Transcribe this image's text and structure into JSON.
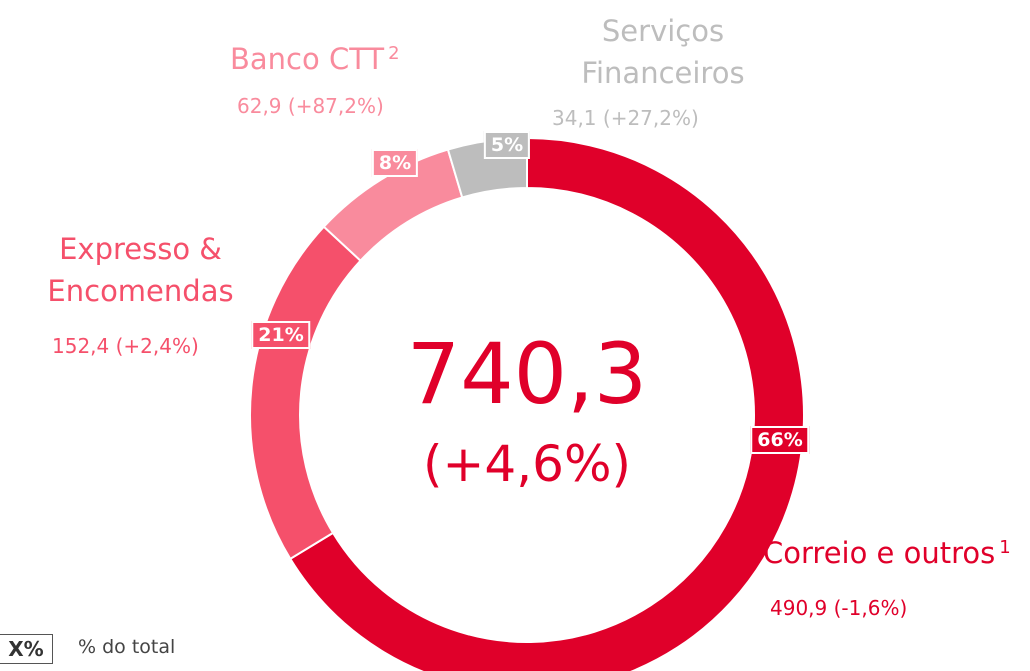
{
  "chart_data": {
    "type": "donut",
    "categories": [
      "Correio e outros",
      "Expresso & Encomendas",
      "Banco CTT",
      "Serviços Financeiros"
    ],
    "footnotes": [
      "1",
      null,
      "2",
      null
    ],
    "values": [
      490.9,
      152.4,
      62.9,
      34.1
    ],
    "value_labels": [
      "490,9 (-1,6%)",
      "152,4 (+2,4%)",
      "62,9 (+87,2%)",
      "34,1 (+27,2%)"
    ],
    "share_labels": [
      "66%",
      "21%",
      "8%",
      "5%"
    ],
    "colors": [
      "#e0002a",
      "#f5506b",
      "#f98b9d",
      "#bdbdbd"
    ],
    "total": "740,3",
    "total_change": "(+4,6%)",
    "legend": {
      "symbol": "X%",
      "text": "% do total"
    }
  }
}
